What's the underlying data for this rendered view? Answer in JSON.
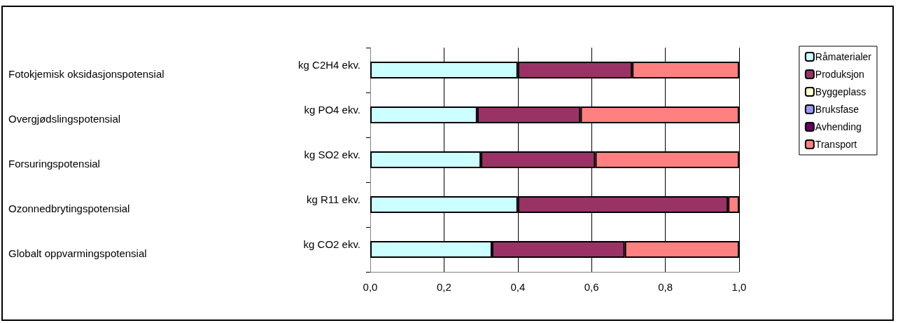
{
  "chart_data": {
    "type": "bar",
    "orientation": "horizontal",
    "stacked": true,
    "categories": [
      "kg C2H4 ekv.",
      "kg PO4 ekv.",
      "kg SO2 ekv.",
      "kg R11 ekv.",
      "kg CO2 ekv."
    ],
    "series": [
      {
        "name": "Råmaterialer",
        "color": "#ccffff",
        "values": [
          0.4,
          0.29,
          0.3,
          0.4,
          0.33
        ]
      },
      {
        "name": "Produksjon",
        "color": "#993366",
        "values": [
          0.31,
          0.28,
          0.31,
          0.57,
          0.36
        ]
      },
      {
        "name": "Byggeplass",
        "color": "#ffffcc",
        "values": [
          0,
          0,
          0,
          0,
          0
        ]
      },
      {
        "name": "Bruksfase",
        "color": "#9999ff",
        "values": [
          0,
          0,
          0,
          0,
          0
        ]
      },
      {
        "name": "Avhending",
        "color": "#660066",
        "values": [
          0,
          0,
          0,
          0,
          0
        ]
      },
      {
        "name": "Transport",
        "color": "#ff8080",
        "values": [
          0.29,
          0.43,
          0.39,
          0.03,
          0.31
        ]
      }
    ],
    "xlim": [
      0,
      1
    ],
    "xticks": [
      {
        "value": 0,
        "label": "0,0"
      },
      {
        "value": 0.2,
        "label": "0,2"
      },
      {
        "value": 0.4,
        "label": "0,4"
      },
      {
        "value": 0.6,
        "label": "0,6"
      },
      {
        "value": 0.8,
        "label": "0,8"
      },
      {
        "value": 1,
        "label": "1,0"
      }
    ],
    "grid": "x",
    "legend": "top right",
    "annotations": [
      "Fotokjemisk oksidasjonspotensial",
      "Overgjødslingspotensial",
      "Forsuringspotensial",
      "Ozonnedbrytingspotensial",
      "Globalt oppvarmingspotensial"
    ]
  }
}
